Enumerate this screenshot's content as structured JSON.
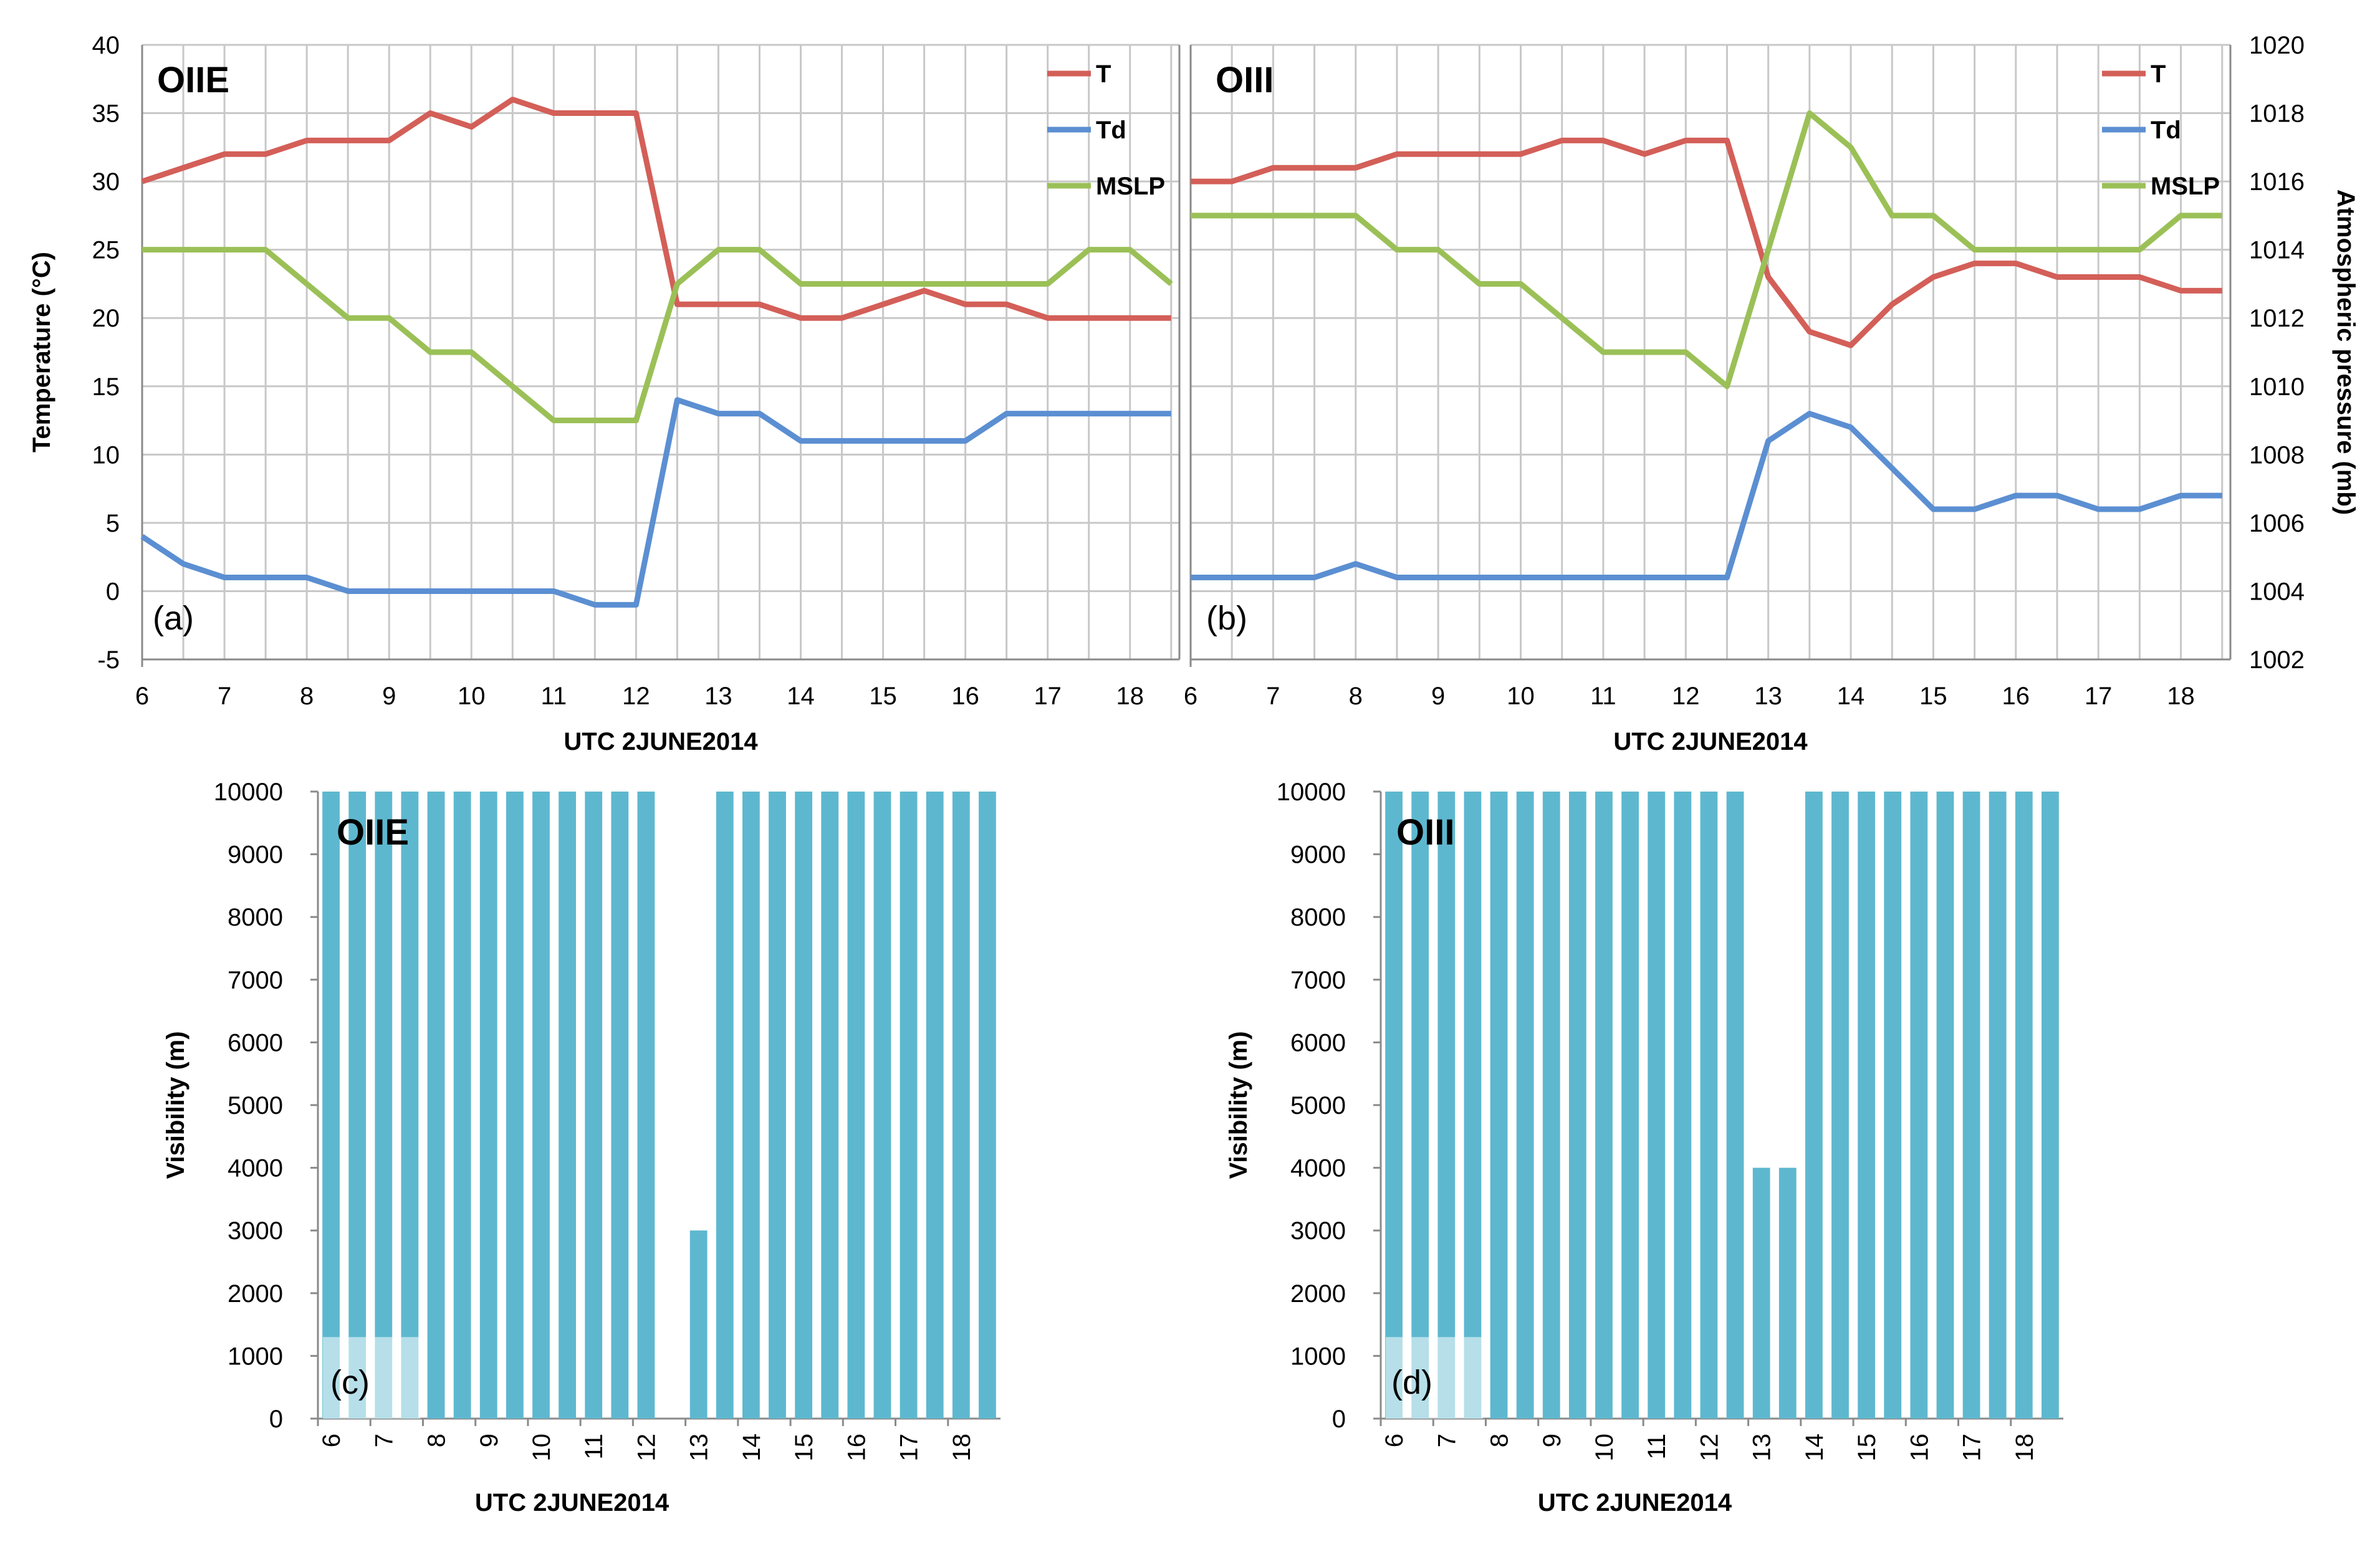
{
  "chart_data": [
    {
      "id": "a",
      "type": "line",
      "station": "OIIE",
      "panel_label": "(a)",
      "xlabel": "UTC 2JUNE2014",
      "ylabel": "Temperature (°C)",
      "ylim": [
        -5,
        40
      ],
      "yticks": [
        -5,
        0,
        5,
        10,
        15,
        20,
        25,
        30,
        35,
        40
      ],
      "xlim": [
        6,
        18.6
      ],
      "xticks": [
        6,
        7,
        8,
        9,
        10,
        11,
        12,
        13,
        14,
        15,
        16,
        17,
        18
      ],
      "x": [
        6,
        6.5,
        7,
        7.5,
        8,
        8.5,
        9,
        9.5,
        10,
        10.5,
        11,
        11.5,
        12,
        12.5,
        13,
        13.5,
        14,
        14.5,
        15,
        15.5,
        16,
        16.5,
        17,
        17.5,
        18,
        18.5
      ],
      "series": [
        {
          "name": "T",
          "axis": "left",
          "color": "#d35f58",
          "values": [
            30,
            31,
            32,
            32,
            33,
            33,
            33,
            35,
            34,
            36,
            35,
            35,
            35,
            21,
            21,
            21,
            20,
            20,
            21,
            22,
            21,
            21,
            20,
            20,
            20,
            20
          ]
        },
        {
          "name": "Td",
          "axis": "left",
          "color": "#5b8fd2",
          "values": [
            4,
            2,
            1,
            1,
            1,
            0,
            0,
            0,
            0,
            0,
            0,
            -1,
            -1,
            14,
            13,
            13,
            11,
            11,
            11,
            11,
            11,
            13,
            13,
            13,
            13,
            13
          ]
        },
        {
          "name": "MSLP",
          "axis": "right",
          "color": "#9bc057",
          "values": [
            1014,
            1014,
            1014,
            1014,
            1013,
            1012,
            1012,
            1011,
            1011,
            1010,
            1009,
            1009,
            1009,
            1013,
            1014,
            1014,
            1013,
            1013,
            1013,
            1013,
            1013,
            1013,
            1013,
            1014,
            1014,
            1013
          ]
        }
      ],
      "y2lim": [
        1002,
        1020
      ]
    },
    {
      "id": "b",
      "type": "line",
      "station": "OIII",
      "panel_label": "(b)",
      "xlabel": "UTC 2JUNE2014",
      "y2label": "Atmospheric pressure (mb)",
      "ylim": [
        -5,
        40
      ],
      "y2lim": [
        1002,
        1020
      ],
      "y2ticks": [
        1002,
        1004,
        1006,
        1008,
        1010,
        1012,
        1014,
        1016,
        1018,
        1020
      ],
      "xlim": [
        6,
        18.6
      ],
      "xticks": [
        6,
        7,
        8,
        9,
        10,
        11,
        12,
        13,
        14,
        15,
        16,
        17,
        18
      ],
      "x": [
        6,
        6.5,
        7,
        7.5,
        8,
        8.5,
        9,
        9.5,
        10,
        10.5,
        11,
        11.5,
        12,
        12.5,
        13,
        13.5,
        14,
        14.5,
        15,
        15.5,
        16,
        16.5,
        17,
        17.5,
        18,
        18.5
      ],
      "series": [
        {
          "name": "T",
          "axis": "left",
          "color": "#d35f58",
          "values": [
            30,
            30,
            31,
            31,
            31,
            32,
            32,
            32,
            32,
            33,
            33,
            32,
            33,
            33,
            23,
            19,
            18,
            21,
            23,
            24,
            24,
            23,
            23,
            23,
            22,
            22
          ]
        },
        {
          "name": "Td",
          "axis": "left",
          "color": "#5b8fd2",
          "values": [
            1,
            1,
            1,
            1,
            2,
            1,
            1,
            1,
            1,
            1,
            1,
            1,
            1,
            1,
            11,
            13,
            12,
            9,
            6,
            6,
            7,
            7,
            6,
            6,
            7,
            7
          ]
        },
        {
          "name": "MSLP",
          "axis": "right",
          "color": "#9bc057",
          "values": [
            1015,
            1015,
            1015,
            1015,
            1015,
            1014,
            1014,
            1013,
            1013,
            1012,
            1011,
            1011,
            1011,
            1010,
            1014,
            1018,
            1017,
            1015,
            1015,
            1014,
            1014,
            1014,
            1014,
            1014,
            1015,
            1015
          ]
        }
      ]
    },
    {
      "id": "c",
      "type": "bar",
      "station": "OIIE",
      "panel_label": "(c)",
      "xlabel": "UTC 2JUNE2014",
      "ylabel": "Visibility (m)",
      "ylim": [
        0,
        10000
      ],
      "yticks": [
        0,
        1000,
        2000,
        3000,
        4000,
        5000,
        6000,
        7000,
        8000,
        9000,
        10000
      ],
      "xticks": [
        "6",
        "7",
        "8",
        "9",
        "10",
        "11",
        "12",
        "13",
        "14",
        "15",
        "16",
        "17",
        "18"
      ],
      "categories": [
        "6",
        "6.5",
        "7",
        "7.5",
        "8",
        "8.5",
        "9",
        "9.5",
        "10",
        "10.5",
        "11",
        "11.5",
        "12",
        "12.5",
        "13",
        "13.5",
        "14",
        "14.5",
        "15",
        "15.5",
        "16",
        "16.5",
        "17",
        "17.5",
        "18",
        "18.5"
      ],
      "values": [
        10000,
        10000,
        10000,
        10000,
        10000,
        10000,
        10000,
        10000,
        10000,
        10000,
        10000,
        10000,
        10000,
        0,
        3000,
        10000,
        10000,
        10000,
        10000,
        10000,
        10000,
        10000,
        10000,
        10000,
        10000,
        10000
      ],
      "color": "#5db8cf"
    },
    {
      "id": "d",
      "type": "bar",
      "station": "OIII",
      "panel_label": "(d)",
      "xlabel": "UTC 2JUNE2014",
      "ylabel": "Visibility (m)",
      "ylim": [
        0,
        10000
      ],
      "yticks": [
        0,
        1000,
        2000,
        3000,
        4000,
        5000,
        6000,
        7000,
        8000,
        9000,
        10000
      ],
      "xticks": [
        "6",
        "7",
        "8",
        "9",
        "10",
        "11",
        "12",
        "13",
        "14",
        "15",
        "16",
        "17",
        "18"
      ],
      "categories": [
        "6",
        "6.5",
        "7",
        "7.5",
        "8",
        "8.5",
        "9",
        "9.5",
        "10",
        "10.5",
        "11",
        "11.5",
        "12",
        "12.5",
        "13",
        "13.5",
        "14",
        "14.5",
        "15",
        "15.5",
        "16",
        "16.5",
        "17",
        "17.5",
        "18",
        "18.5"
      ],
      "values": [
        10000,
        10000,
        10000,
        10000,
        10000,
        10000,
        10000,
        10000,
        10000,
        10000,
        10000,
        10000,
        10000,
        10000,
        4000,
        4000,
        10000,
        10000,
        10000,
        10000,
        10000,
        10000,
        10000,
        10000,
        10000,
        10000
      ],
      "color": "#5db8cf"
    }
  ]
}
